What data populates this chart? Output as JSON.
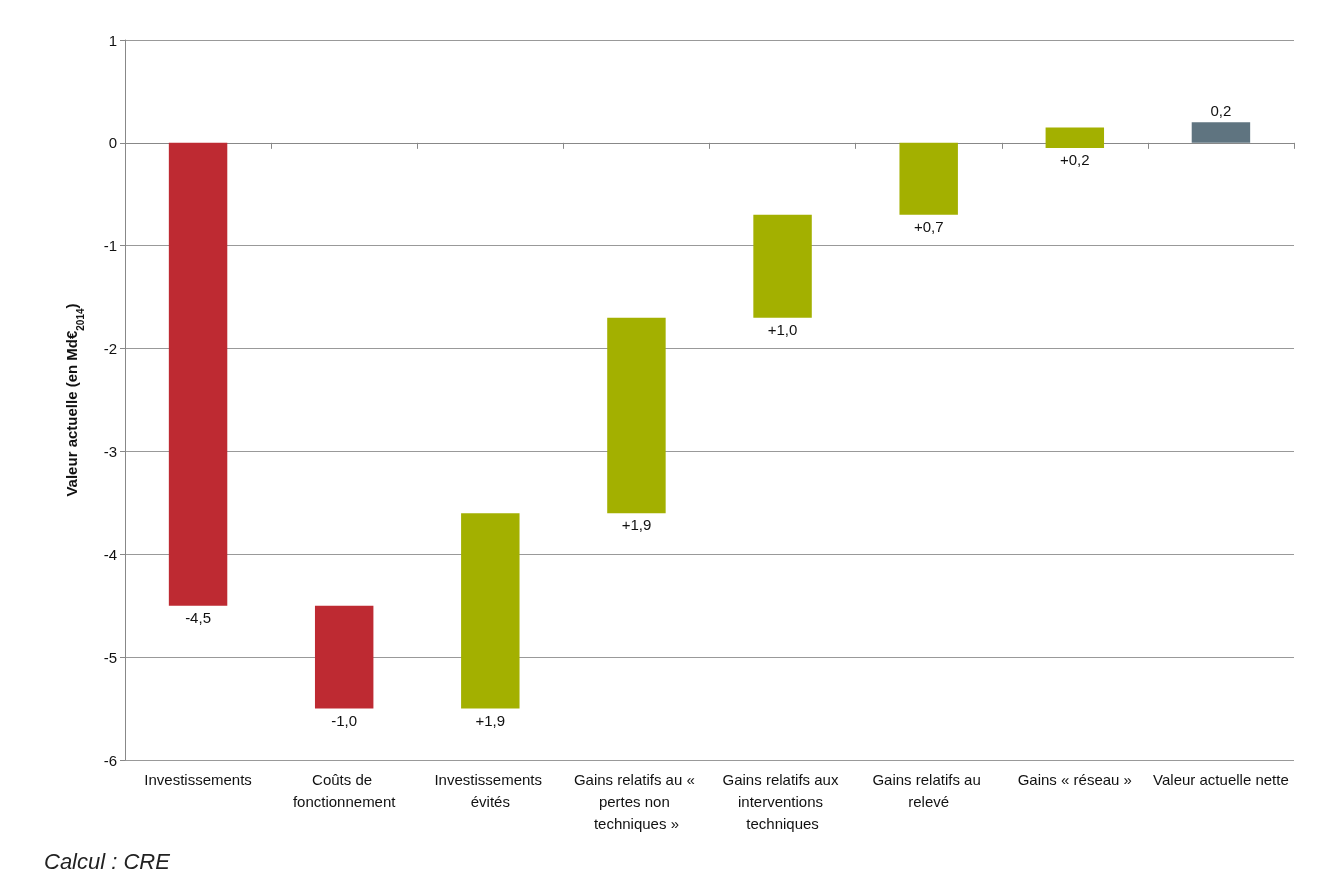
{
  "chart_data": {
    "type": "bar",
    "ylabel": "Valeur actuelle (en Md€$_{2014}$)",
    "categories": [
      "Investissements",
      "Coûts de fonctionnement",
      "Investissements évités",
      "Gains relatifs au « pertes non techniques »",
      "Gains relatifs aux interventions techniques",
      "Gains relatifs au relevé",
      "Gains « réseau »",
      "Valeur actuelle nette"
    ],
    "values": [
      -4.5,
      -1.0,
      1.9,
      1.9,
      1.0,
      0.7,
      0.2,
      0.2
    ],
    "base": [
      0,
      -4.5,
      -5.5,
      -3.6,
      -1.7,
      -0.7,
      -0.05,
      0
    ],
    "colors": [
      "#be2a32",
      "#be2a32",
      "#a3b000",
      "#a3b000",
      "#a3b000",
      "#a3b000",
      "#a3b000",
      "#5f7480"
    ],
    "value_labels": [
      "-4,5",
      "-1,0",
      "+1,9",
      "+1,9",
      "+1,0",
      "+0,7",
      "+0,2",
      "0,2"
    ],
    "ylim": [
      -6,
      1
    ],
    "yticks": [
      -6,
      -5,
      -4,
      -3,
      -2,
      -1,
      0,
      1
    ],
    "grid": "y",
    "annotations": [
      "Calcul : CRE"
    ]
  }
}
